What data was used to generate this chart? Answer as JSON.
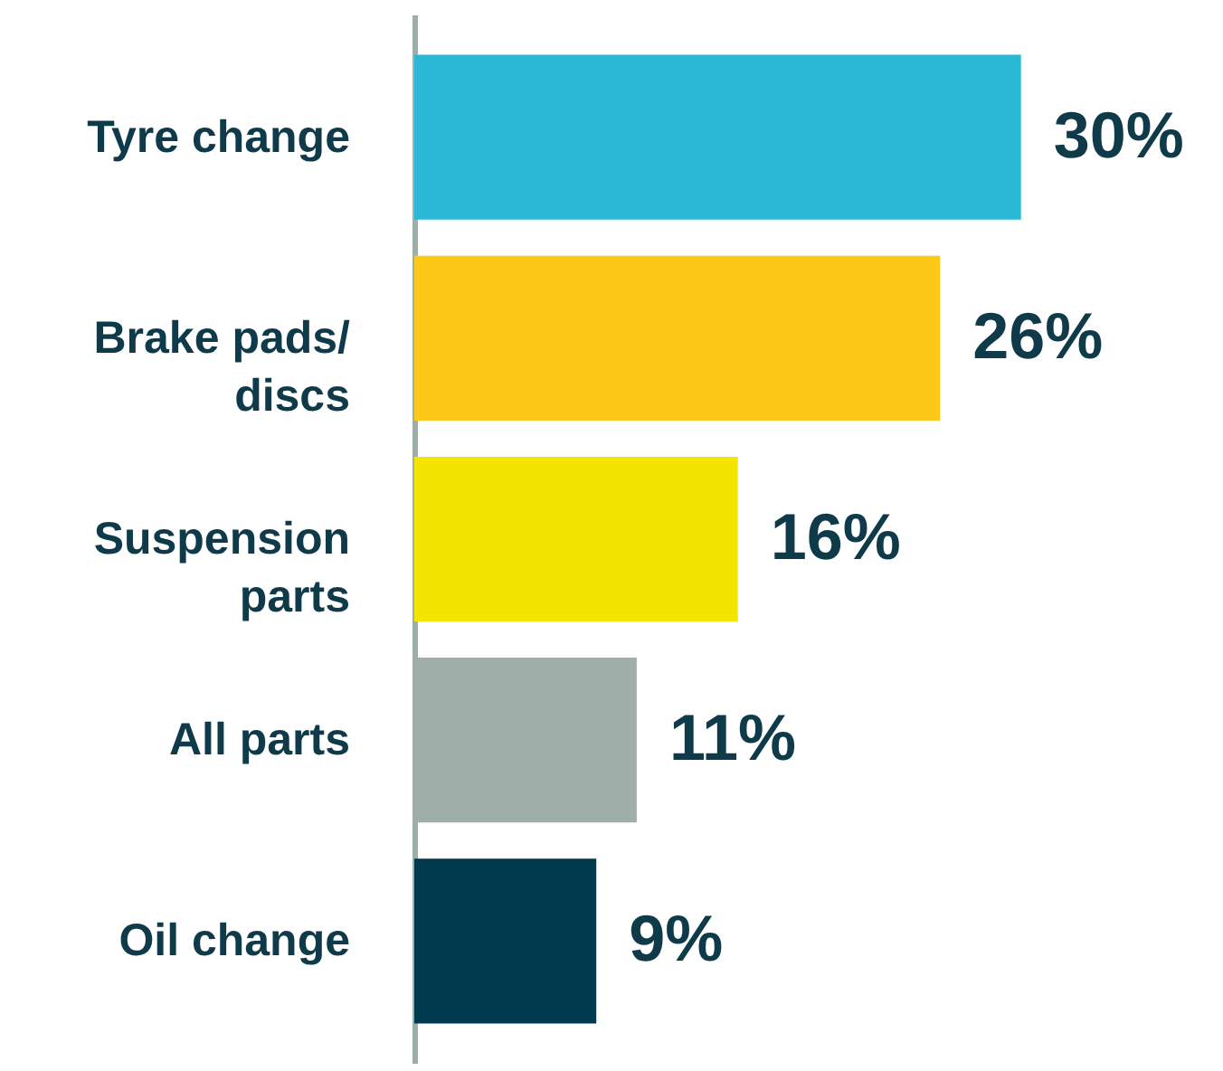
{
  "chart_data": {
    "type": "bar",
    "orientation": "horizontal",
    "categories": [
      "Tyre change",
      "Brake pads/ discs",
      "Suspension parts",
      "All parts",
      "Oil change"
    ],
    "values": [
      30,
      26,
      16,
      11,
      9
    ],
    "colors": [
      "#29b9d6",
      "#fdc918",
      "#f3e500",
      "#a0aea9",
      "#013a4c"
    ],
    "value_labels": [
      "30%",
      "26%",
      "16%",
      "11%",
      "9%"
    ]
  }
}
